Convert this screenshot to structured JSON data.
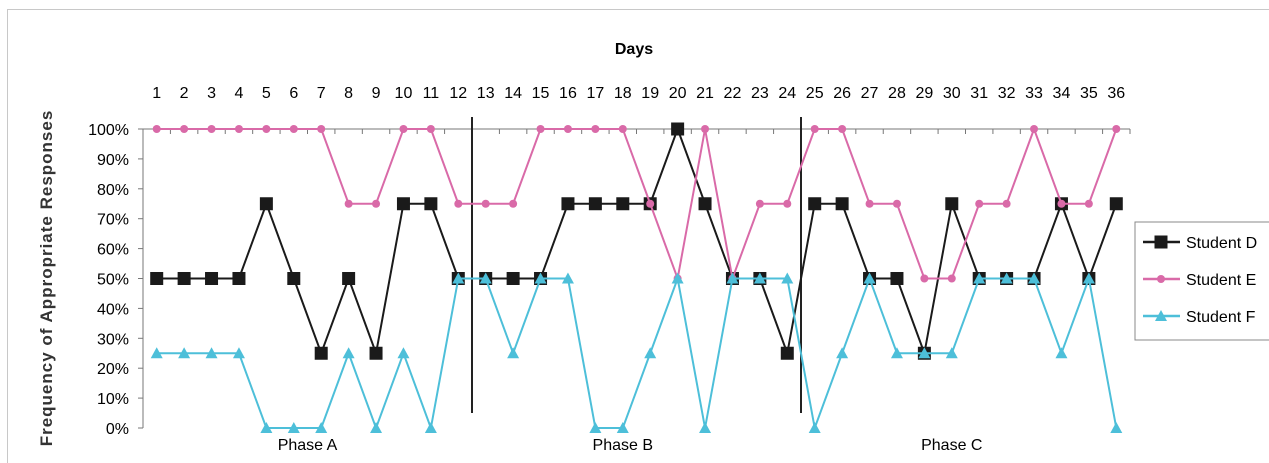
{
  "chart_data": {
    "type": "line",
    "title": "Days",
    "xlabel": "",
    "ylabel": "Frequency of Appropriate Responses",
    "x": [
      1,
      2,
      3,
      4,
      5,
      6,
      7,
      8,
      9,
      10,
      11,
      12,
      13,
      14,
      15,
      16,
      17,
      18,
      19,
      20,
      21,
      22,
      23,
      24,
      25,
      26,
      27,
      28,
      29,
      30,
      31,
      32,
      33,
      34,
      35,
      36
    ],
    "y_ticks": [
      "0%",
      "10%",
      "20%",
      "30%",
      "40%",
      "50%",
      "60%",
      "70%",
      "80%",
      "90%",
      "100%"
    ],
    "ylim": [
      0,
      100
    ],
    "x_axis_position": "top",
    "grid": false,
    "legend_position": "right",
    "series": [
      {
        "name": "Student D",
        "color": "#1a1a1a",
        "marker": "square",
        "values": [
          50,
          50,
          50,
          50,
          75,
          50,
          25,
          50,
          25,
          75,
          75,
          50,
          50,
          50,
          50,
          75,
          75,
          75,
          75,
          100,
          75,
          50,
          50,
          25,
          75,
          75,
          50,
          50,
          25,
          75,
          50,
          50,
          50,
          75,
          50,
          75
        ]
      },
      {
        "name": "Student E",
        "color": "#d96aa8",
        "marker": "circle",
        "values": [
          100,
          100,
          100,
          100,
          100,
          100,
          100,
          75,
          75,
          100,
          100,
          75,
          75,
          75,
          100,
          100,
          100,
          100,
          75,
          50,
          100,
          50,
          75,
          75,
          100,
          100,
          75,
          75,
          50,
          50,
          75,
          75,
          100,
          75,
          75,
          100
        ]
      },
      {
        "name": "Student F",
        "color": "#4dbfd9",
        "marker": "triangle",
        "values": [
          25,
          25,
          25,
          25,
          0,
          0,
          0,
          25,
          0,
          25,
          0,
          50,
          50,
          25,
          50,
          50,
          0,
          0,
          25,
          50,
          0,
          50,
          50,
          50,
          0,
          25,
          50,
          25,
          25,
          25,
          50,
          50,
          50,
          25,
          50,
          0
        ]
      }
    ],
    "phase_lines": [
      12.5,
      24.5
    ],
    "annotations": [
      {
        "text": "Phase A",
        "x": 6.5
      },
      {
        "text": "Phase B",
        "x": 18
      },
      {
        "text": "Phase C",
        "x": 30
      }
    ]
  }
}
